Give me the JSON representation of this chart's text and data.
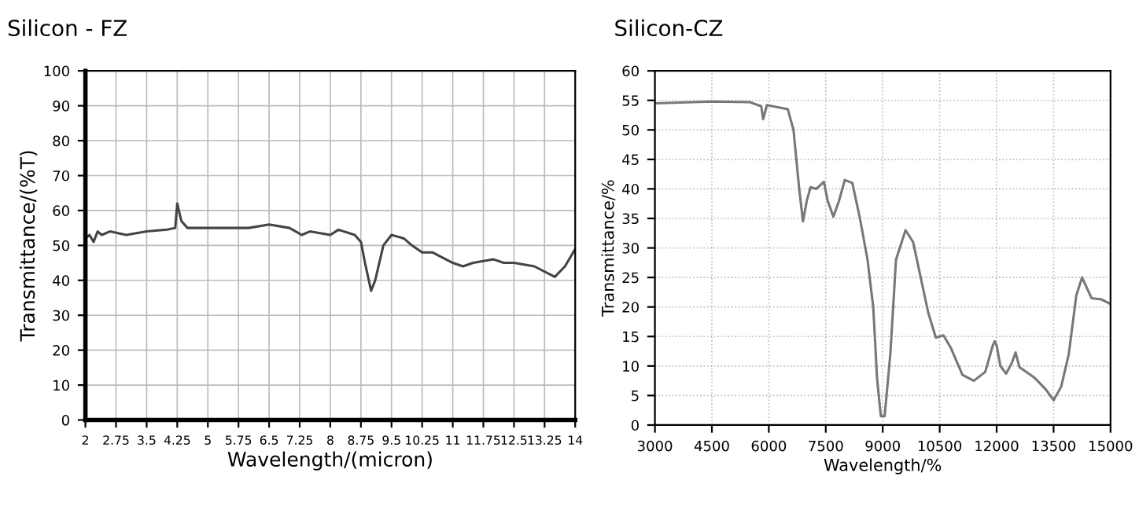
{
  "chart_data": [
    {
      "type": "line",
      "title": "Silicon - FZ",
      "xlabel": "Wavelength/(micron)",
      "ylabel": "Transmittance/(%T)",
      "grid": true,
      "xlim": [
        2,
        14
      ],
      "ylim": [
        0,
        100
      ],
      "xticks": [
        2,
        2.75,
        3.5,
        4.25,
        5,
        5.75,
        6.5,
        7.25,
        8,
        8.75,
        9.5,
        10.25,
        11,
        11.75,
        12.5,
        13.25,
        14
      ],
      "yticks": [
        0,
        10,
        20,
        30,
        40,
        50,
        60,
        70,
        80,
        90,
        100
      ],
      "series": [
        {
          "color": "#444444",
          "x": [
            2,
            2.1,
            2.2,
            2.3,
            2.4,
            2.6,
            2.8,
            3,
            3.5,
            4,
            4.2,
            4.25,
            4.35,
            4.5,
            5,
            5.5,
            6,
            6.5,
            7,
            7.3,
            7.5,
            8,
            8.2,
            8.6,
            8.75,
            8.85,
            9,
            9.1,
            9.3,
            9.5,
            9.8,
            10,
            10.25,
            10.5,
            11,
            11.25,
            11.5,
            12,
            12.25,
            12.5,
            13,
            13.5,
            13.75,
            14
          ],
          "values": [
            52,
            53,
            51,
            54,
            53,
            54,
            53.5,
            53,
            54,
            54.5,
            55,
            62,
            57,
            55,
            55,
            55,
            55,
            56,
            55,
            53,
            54,
            53,
            54.5,
            53,
            51,
            45,
            37,
            40,
            50,
            53,
            52,
            50,
            48,
            48,
            45,
            44,
            45,
            46,
            45,
            45,
            44,
            41,
            44,
            49
          ]
        }
      ]
    },
    {
      "type": "line",
      "title": "Silicon-CZ",
      "xlabel": "Wavelength/%",
      "ylabel": "Transmittance/%",
      "grid": true,
      "xlim": [
        3000,
        15000
      ],
      "ylim": [
        0,
        60
      ],
      "xticks": [
        3000,
        4500,
        6000,
        7500,
        9000,
        10500,
        12000,
        13500,
        15000
      ],
      "yticks": [
        0,
        5,
        10,
        15,
        20,
        25,
        30,
        35,
        40,
        45,
        50,
        55,
        60
      ],
      "series": [
        {
          "color": "#777777",
          "x": [
            3000,
            4500,
            5500,
            5800,
            5850,
            5950,
            6500,
            6650,
            6800,
            6900,
            7000,
            7100,
            7250,
            7450,
            7550,
            7700,
            7850,
            8000,
            8200,
            8400,
            8600,
            8750,
            8850,
            8950,
            9050,
            9200,
            9350,
            9600,
            9800,
            10000,
            10200,
            10400,
            10600,
            10800,
            11100,
            11400,
            11700,
            11900,
            11950,
            12000,
            12100,
            12250,
            12400,
            12500,
            12600,
            13000,
            13300,
            13500,
            13700,
            13900,
            14100,
            14250,
            14500,
            14750,
            15000
          ],
          "values": [
            54.5,
            54.8,
            54.7,
            54,
            51.8,
            54.2,
            53.5,
            50,
            40,
            34.5,
            38,
            40.3,
            40,
            41.2,
            38,
            35.3,
            38,
            41.5,
            41,
            35,
            28,
            20,
            8,
            1.5,
            1.5,
            12,
            28,
            33,
            31,
            25,
            19,
            14.8,
            15.2,
            13,
            8.5,
            7.5,
            9,
            13.5,
            14.2,
            13.5,
            10,
            8.7,
            10.5,
            12.3,
            9.8,
            8,
            6,
            4.2,
            6.5,
            12,
            22,
            25,
            21.5,
            21.3,
            20.5
          ]
        }
      ]
    }
  ]
}
